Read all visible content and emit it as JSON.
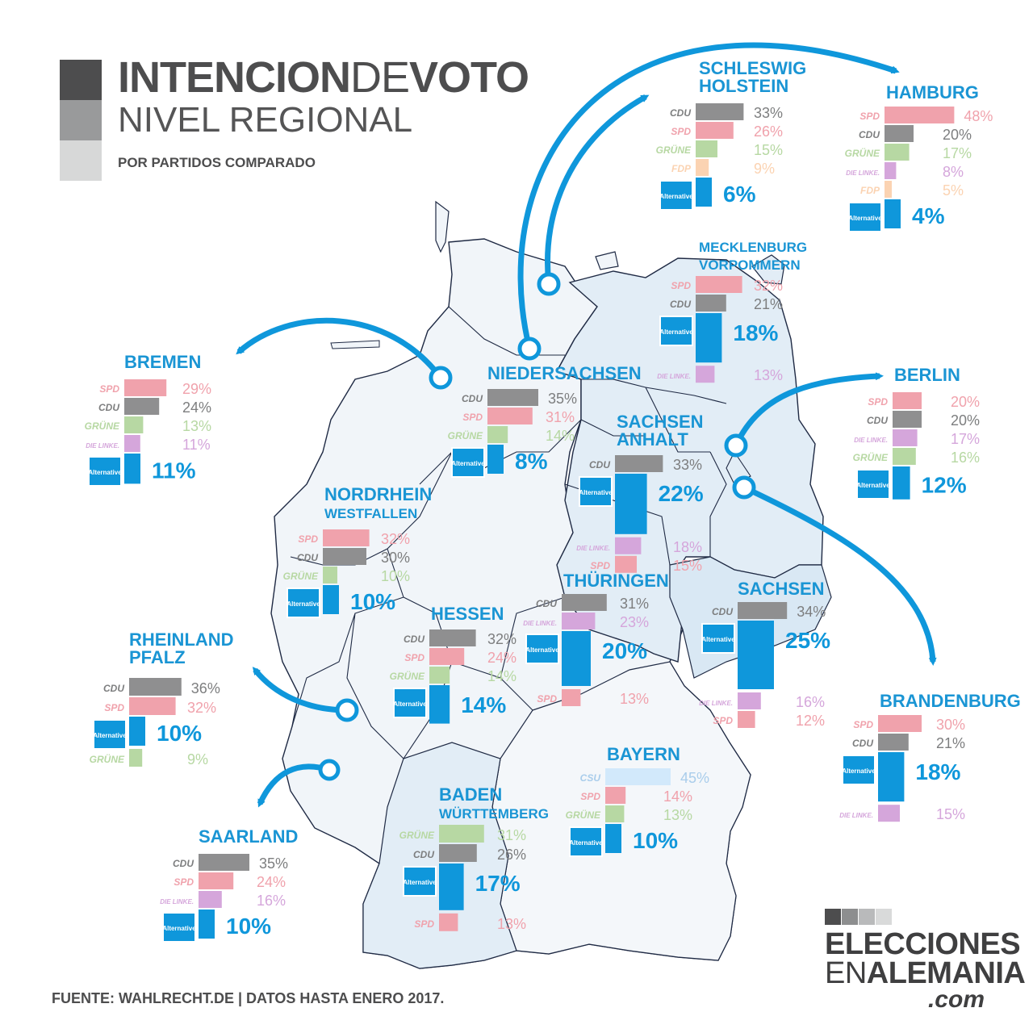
{
  "header": {
    "title_bold": "INTENCION",
    "title_light": "DE",
    "title_bold2": "VOTO",
    "subtitle": "NIVEL REGIONAL",
    "caption": "POR PARTIDOS COMPARADO"
  },
  "footer": {
    "source": "FUENTE: WAHLRECHT.DE | DATOS HASTA ENERO 2017."
  },
  "brand": {
    "line1": "ELECCIONES",
    "line2_light": "EN",
    "line2_bold": "ALEMANIA",
    "line3": ".com"
  },
  "colors": {
    "CDU": "#8f8f90",
    "SPD": "#f0a2ac",
    "GRUNE": "#b7d8a3",
    "LINKE": "#d5a6db",
    "FDP": "#fbd3b2",
    "AFD": "#0f97db",
    "CSU": "#d2e9fb",
    "arrow": "#0f97db",
    "region_title": "#1a95d4",
    "map_fill": "#f1f5f9",
    "map_fill_east": "#e2edf6",
    "map_stroke": "#1f2a44"
  },
  "party_labels": {
    "CDU": "CDU",
    "SPD": "SPD",
    "GRUNE": "GRÜNE",
    "LINKE": "DIE LINKE.",
    "FDP": "FDP",
    "AFD": "Alternative",
    "CSU": "CSU"
  },
  "chart_data": {
    "type": "bar",
    "orientation": "horizontal",
    "unit": "%",
    "regions": [
      {
        "name": [
          "SCHLESWIG",
          "HOLSTEIN"
        ],
        "bars": [
          {
            "party": "CDU",
            "value": 33
          },
          {
            "party": "SPD",
            "value": 26
          },
          {
            "party": "GRUNE",
            "value": 15
          },
          {
            "party": "FDP",
            "value": 9
          },
          {
            "party": "AFD",
            "value": 6
          }
        ]
      },
      {
        "name": [
          "HAMBURG"
        ],
        "bars": [
          {
            "party": "SPD",
            "value": 48
          },
          {
            "party": "CDU",
            "value": 20
          },
          {
            "party": "GRUNE",
            "value": 17
          },
          {
            "party": "LINKE",
            "value": 8
          },
          {
            "party": "FDP",
            "value": 5
          },
          {
            "party": "AFD",
            "value": 4
          }
        ]
      },
      {
        "name": [
          "MECKLENBURG",
          "VORPOMMERN"
        ],
        "bars": [
          {
            "party": "SPD",
            "value": 32
          },
          {
            "party": "CDU",
            "value": 21
          },
          {
            "party": "AFD",
            "value": 18
          },
          {
            "party": "LINKE",
            "value": 13
          }
        ]
      },
      {
        "name": [
          "BREMEN"
        ],
        "bars": [
          {
            "party": "SPD",
            "value": 29
          },
          {
            "party": "CDU",
            "value": 24
          },
          {
            "party": "GRUNE",
            "value": 13
          },
          {
            "party": "LINKE",
            "value": 11
          },
          {
            "party": "AFD",
            "value": 11
          }
        ]
      },
      {
        "name": [
          "NIEDERSACHSEN"
        ],
        "bars": [
          {
            "party": "CDU",
            "value": 35
          },
          {
            "party": "SPD",
            "value": 31
          },
          {
            "party": "GRUNE",
            "value": 14
          },
          {
            "party": "AFD",
            "value": 8
          }
        ]
      },
      {
        "name": [
          "BERLIN"
        ],
        "bars": [
          {
            "party": "SPD",
            "value": 20
          },
          {
            "party": "CDU",
            "value": 20
          },
          {
            "party": "LINKE",
            "value": 17
          },
          {
            "party": "GRUNE",
            "value": 16
          },
          {
            "party": "AFD",
            "value": 12
          }
        ]
      },
      {
        "name": [
          "SACHSEN",
          "ANHALT"
        ],
        "bars": [
          {
            "party": "CDU",
            "value": 33
          },
          {
            "party": "AFD",
            "value": 22
          },
          {
            "party": "LINKE",
            "value": 18
          },
          {
            "party": "SPD",
            "value": 15
          }
        ]
      },
      {
        "name": [
          "NORDRHEIN",
          "WESTFALLEN"
        ],
        "bars": [
          {
            "party": "SPD",
            "value": 32
          },
          {
            "party": "CDU",
            "value": 30
          },
          {
            "party": "GRUNE",
            "value": 10
          },
          {
            "party": "AFD",
            "value": 10
          }
        ]
      },
      {
        "name": [
          "THÜRINGEN"
        ],
        "bars": [
          {
            "party": "CDU",
            "value": 31
          },
          {
            "party": "LINKE",
            "value": 23
          },
          {
            "party": "AFD",
            "value": 20
          },
          {
            "party": "SPD",
            "value": 13
          }
        ]
      },
      {
        "name": [
          "SACHSEN"
        ],
        "bars": [
          {
            "party": "CDU",
            "value": 34
          },
          {
            "party": "AFD",
            "value": 25
          },
          {
            "party": "LINKE",
            "value": 16
          },
          {
            "party": "SPD",
            "value": 12
          }
        ]
      },
      {
        "name": [
          "HESSEN"
        ],
        "bars": [
          {
            "party": "CDU",
            "value": 32
          },
          {
            "party": "SPD",
            "value": 24
          },
          {
            "party": "GRUNE",
            "value": 14
          },
          {
            "party": "AFD",
            "value": 14
          }
        ]
      },
      {
        "name": [
          "RHEINLAND",
          "PFALZ"
        ],
        "bars": [
          {
            "party": "CDU",
            "value": 36
          },
          {
            "party": "SPD",
            "value": 32
          },
          {
            "party": "AFD",
            "value": 10
          },
          {
            "party": "GRUNE",
            "value": 9
          }
        ]
      },
      {
        "name": [
          "BRANDENBURG"
        ],
        "bars": [
          {
            "party": "SPD",
            "value": 30
          },
          {
            "party": "CDU",
            "value": 21
          },
          {
            "party": "AFD",
            "value": 18
          },
          {
            "party": "LINKE",
            "value": 15
          }
        ]
      },
      {
        "name": [
          "BAYERN"
        ],
        "bars": [
          {
            "party": "CSU",
            "value": 45
          },
          {
            "party": "SPD",
            "value": 14
          },
          {
            "party": "GRUNE",
            "value": 13
          },
          {
            "party": "AFD",
            "value": 10
          }
        ]
      },
      {
        "name": [
          "BADEN",
          "WÜRTTEMBERG"
        ],
        "bars": [
          {
            "party": "GRUNE",
            "value": 31
          },
          {
            "party": "CDU",
            "value": 26
          },
          {
            "party": "AFD",
            "value": 17
          },
          {
            "party": "SPD",
            "value": 13
          }
        ]
      },
      {
        "name": [
          "SAARLAND"
        ],
        "bars": [
          {
            "party": "CDU",
            "value": 35
          },
          {
            "party": "SPD",
            "value": 24
          },
          {
            "party": "LINKE",
            "value": 16
          },
          {
            "party": "AFD",
            "value": 10
          }
        ]
      }
    ]
  }
}
